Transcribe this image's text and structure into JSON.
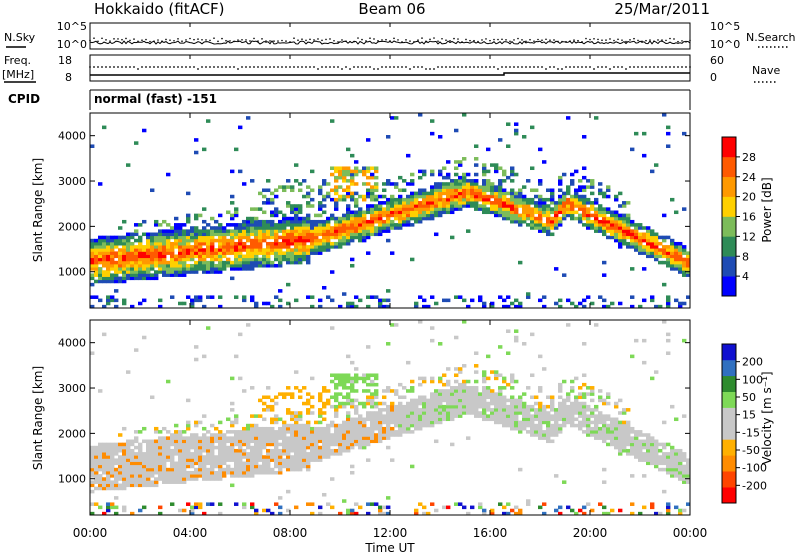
{
  "header": {
    "station": "Hokkaido (fitACF)",
    "beam": "Beam 06",
    "date": "25/Mar/2011"
  },
  "top_panels": {
    "nsky_label": "N.Sky",
    "nsearch_label": "N.Search",
    "freq_label": "Freq.",
    "freq_unit": "[MHz]",
    "nave_label": "Nave",
    "cpid_label": "CPID",
    "cpid_value": "normal (fast) -151",
    "noise_ticks_left": [
      "10^5",
      "10^0"
    ],
    "noise_ticks_right": [
      "10^5",
      "10^0"
    ],
    "freq_ticks": [
      "18",
      "8"
    ],
    "nave_ticks": [
      "60",
      "0"
    ]
  },
  "colors": {
    "power_scale": [
      "#0000ff",
      "#1e4bb4",
      "#2e8b57",
      "#7cbc5a",
      "#ffd000",
      "#ff9900",
      "#ff5a00",
      "#ff0000"
    ],
    "velocity_scale": [
      "#ff0000",
      "#ff4500",
      "#ff8c00",
      "#ffb000",
      "#c8c8c8",
      "#c8c8c8",
      "#7ed957",
      "#2e8b2e",
      "#3070c0",
      "#1010d0"
    ]
  },
  "chart_data": [
    {
      "type": "heatmap",
      "name": "power",
      "ylabel": "Slant Range [km]",
      "colorbar_label": "Power [dB]",
      "colorbar_ticks": [
        "28",
        "24",
        "20",
        "16",
        "12",
        "8",
        "4"
      ],
      "yticks": [
        "4000",
        "3000",
        "2000",
        "1000"
      ],
      "ylim": [
        200,
        4500
      ],
      "xlim": [
        0,
        24
      ]
    },
    {
      "type": "heatmap",
      "name": "velocity",
      "ylabel": "Slant Range [km]",
      "colorbar_label": "Velocity [m s⁻¹]",
      "colorbar_ticks": [
        "200",
        "100",
        "50",
        "15",
        "-15",
        "-50",
        "-100",
        "-200"
      ],
      "yticks": [
        "4000",
        "3000",
        "2000",
        "1000"
      ],
      "ylim": [
        200,
        4500
      ],
      "xlim": [
        0,
        24
      ],
      "xticks": [
        "00:00",
        "04:00",
        "08:00",
        "12:00",
        "16:00",
        "20:00",
        "00:00"
      ],
      "xlabel": "Time UT"
    }
  ]
}
